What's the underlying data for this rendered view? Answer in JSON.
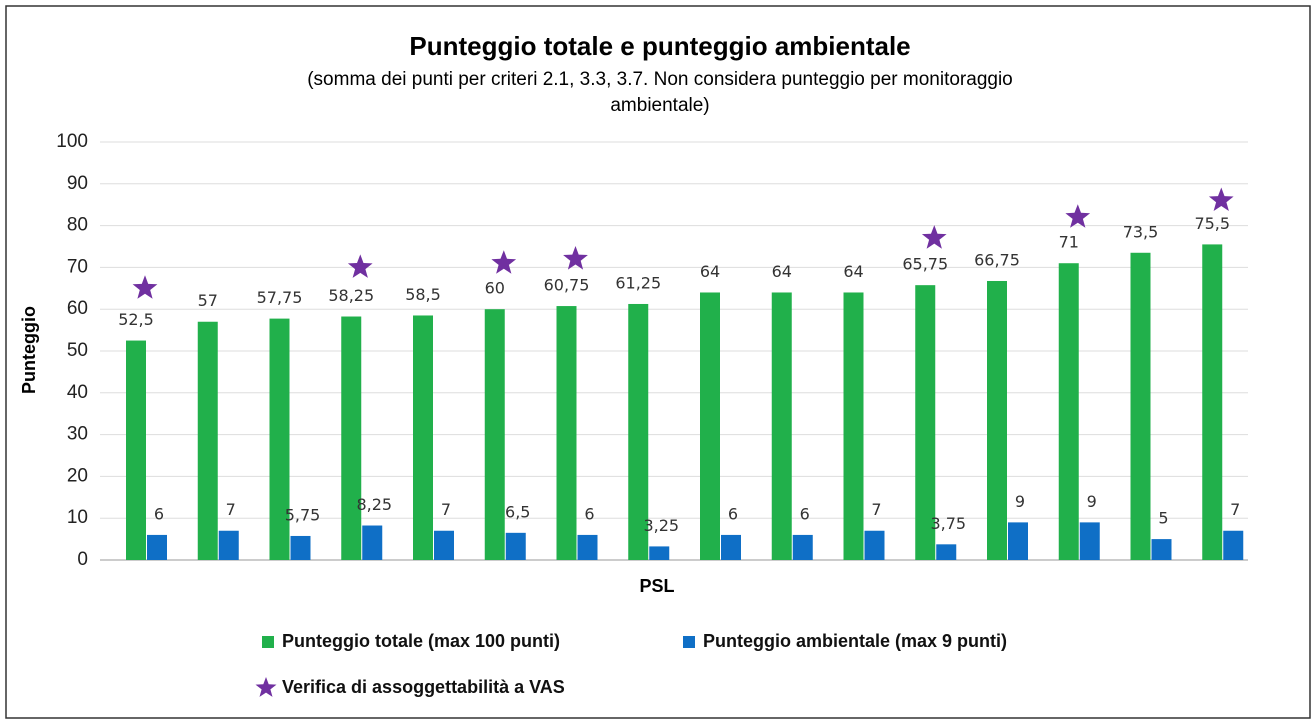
{
  "chart_data": {
    "type": "bar",
    "title": "Punteggio totale e punteggio ambientale",
    "subtitle": [
      "(somma dei punti per criteri 2.1, 3.3, 3.7. Non considera punteggio per monitoraggio",
      "ambientale)"
    ],
    "x_label": "PSL",
    "y_label": "Punteggio",
    "categories": [
      null,
      null,
      null,
      null,
      null,
      null,
      null,
      null,
      null,
      null,
      null,
      null,
      null,
      null,
      null,
      null
    ],
    "ylim": [
      0,
      100
    ],
    "yticks": [
      0,
      10,
      20,
      30,
      40,
      50,
      60,
      70,
      80,
      90,
      100
    ],
    "grid": true,
    "legend": "bottom",
    "series": [
      {
        "name": "Punteggio totale (max 100 punti)",
        "color": "#21b04b",
        "values": [
          52.5,
          57,
          57.75,
          58.25,
          58.5,
          60,
          60.75,
          61.25,
          64,
          64,
          64,
          65.75,
          66.75,
          71,
          73.5,
          75.5
        ],
        "value_labels": [
          "52,5",
          "57",
          "57,75",
          "58,25",
          "58,5",
          "60",
          "60,75",
          "61,25",
          "64",
          "64",
          "64",
          "65,75",
          "66,75",
          "71",
          "73,5",
          "75,5"
        ]
      },
      {
        "name": "Punteggio ambientale (max 9 punti)",
        "color": "#0f6fc6",
        "values": [
          6,
          7,
          5.75,
          8.25,
          7,
          6.5,
          6,
          3.25,
          6,
          6,
          7,
          3.75,
          9,
          9,
          5,
          7
        ],
        "value_labels": [
          "6",
          "7",
          "5,75",
          "8,25",
          "7",
          "6,5",
          "6",
          "3,25",
          "6",
          "6",
          "7",
          "3,75",
          "9",
          "9",
          "5",
          "7"
        ]
      },
      {
        "name": "Verifica di assoggettabilità a VAS",
        "color": "#7030a0",
        "type": "scatter",
        "marker": "star",
        "values": [
          65,
          null,
          null,
          70,
          null,
          71,
          72,
          null,
          null,
          null,
          null,
          77,
          null,
          82,
          null,
          86
        ]
      }
    ]
  }
}
